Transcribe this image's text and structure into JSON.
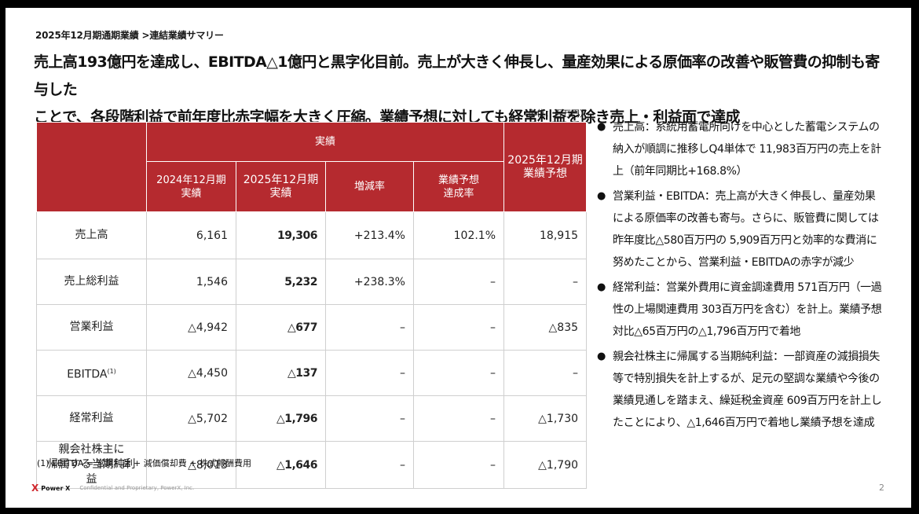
{
  "breadcrumb": "2025年12月期通期業績 >連結業績サマリー",
  "headline": {
    "line1": "売上高193億円を達成し、EBITDA△1億円と黒字化目前。売上が大きく伸長し、量産効果による原価率の改善や販管費の抑制も寄与した",
    "line2": "ことで、各段階利益で前年度比赤字幅を大きく圧縮。業績予想に対しても経常利益を除き売上・利益面で達成"
  },
  "unit_note": "（単位：百万円）",
  "table": {
    "group_header": "実績",
    "forecast_header": {
      "line1": "2025年12月期",
      "line2": "業績予想"
    },
    "columns": [
      {
        "line1": "2024年12月期",
        "line2": "実績"
      },
      {
        "line1": "2025年12月期",
        "line2": "実績"
      },
      {
        "line1": "増減率",
        "line2": ""
      },
      {
        "line1": "業績予想",
        "line2": "達成率"
      }
    ],
    "rows": [
      {
        "label1": "売上高",
        "label2": "",
        "fy2024": "6,161",
        "fy2025": "19,306",
        "change": "+213.4%",
        "achievement": "102.1%",
        "forecast": "18,915"
      },
      {
        "label1": "売上総利益",
        "label2": "",
        "fy2024": "1,546",
        "fy2025": "5,232",
        "change": "+238.3%",
        "achievement": "–",
        "forecast": "–"
      },
      {
        "label1": "営業利益",
        "label2": "",
        "fy2024": "△4,942",
        "fy2025": "△677",
        "change": "–",
        "achievement": "–",
        "forecast": "△835"
      },
      {
        "label1": "EBITDA",
        "label2": "",
        "fy2024": "△4,450",
        "fy2025": "△137",
        "change": "–",
        "achievement": "–",
        "forecast": "–"
      },
      {
        "label1": "経常利益",
        "label2": "",
        "fy2024": "△5,702",
        "fy2025": "△1,796",
        "change": "–",
        "achievement": "–",
        "forecast": "△1,730"
      },
      {
        "label1": "親会社株主に",
        "label2": "帰属する当期純利益",
        "fy2024": "△8,013",
        "fy2025": "△1,646",
        "change": "–",
        "achievement": "–",
        "forecast": "△1,790"
      }
    ],
    "ebitda_footnote_mark": "(1)"
  },
  "footnote": "(1)  EBITDA = 営業利益 + 減価償却費 + 株式報酬費用",
  "bullets": [
    {
      "lines": [
        "売上高：系統用蓄電所向けを中心とした蓄電システムの",
        "納入が順調に推移しQ4単体で 11,983百万円の売上を計",
        "上（前年同期比+168.8%）"
      ]
    },
    {
      "lines": [
        "営業利益・EBITDA：売上高が大きく伸長し、量産効果",
        "による原価率の改善も寄与。さらに、販管費に関しては",
        "昨年度比△580百万円の 5,909百万円と効率的な費消に",
        "努めたことから、営業利益・EBITDAの赤字が減少"
      ]
    },
    {
      "lines": [
        "経常利益：営業外費用に資金調達費用 571百万円（一過",
        "性の上場関連費用 303百万円を含む）を計上。業績予想",
        "対比△65百万円の△1,796百万円で着地"
      ]
    },
    {
      "lines": [
        "親会社株主に帰属する当期純利益：一部資産の減損損失",
        "等で特別損失を計上するが、足元の堅調な業績や今後の",
        "業績見通しを踏まえ、繰延税金資産 609百万円を計上し",
        "たことにより、△1,646百万円で着地し業績予想を達成"
      ]
    }
  ],
  "footer": {
    "logo_mark": "X",
    "logo_text": "Power X",
    "confidential": "Confidential and Proprietary, PowerX, Inc.",
    "page_number": "2"
  },
  "colors": {
    "accent": "#b52a2f",
    "logo": "#d0282e"
  }
}
